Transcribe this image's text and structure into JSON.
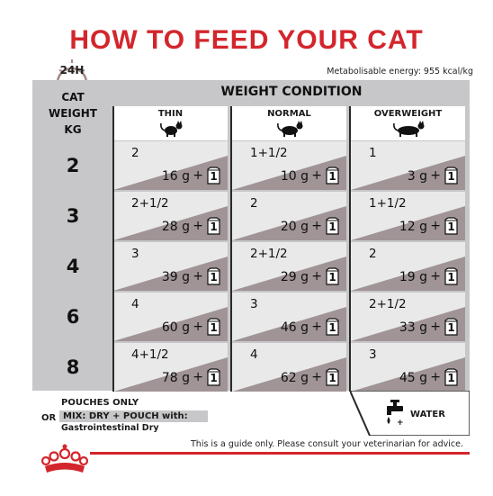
{
  "title": "HOW TO FEED YOUR CAT",
  "clock_label": "24H",
  "energy_text": "Metabolisable energy: 955 kcal/kg",
  "cat_weight_label": [
    "CAT",
    "WEIGHT",
    "KG"
  ],
  "weight_condition_label": "WEIGHT CONDITION",
  "columns": [
    "THIN",
    "NORMAL",
    "OVERWEIGHT"
  ],
  "pouch_icon_value": "1",
  "rows": [
    {
      "weight": "2",
      "cells": [
        {
          "pouches": "2",
          "dry": "16 g"
        },
        {
          "pouches": "1+1/2",
          "dry": "10 g"
        },
        {
          "pouches": "1",
          "dry": "3 g"
        }
      ]
    },
    {
      "weight": "3",
      "cells": [
        {
          "pouches": "2+1/2",
          "dry": "28 g"
        },
        {
          "pouches": "2",
          "dry": "20 g"
        },
        {
          "pouches": "1+1/2",
          "dry": "12 g"
        }
      ]
    },
    {
      "weight": "4",
      "cells": [
        {
          "pouches": "3",
          "dry": "39 g"
        },
        {
          "pouches": "2+1/2",
          "dry": "29 g"
        },
        {
          "pouches": "2",
          "dry": "19 g"
        }
      ]
    },
    {
      "weight": "6",
      "cells": [
        {
          "pouches": "4",
          "dry": "60 g"
        },
        {
          "pouches": "3",
          "dry": "46 g"
        },
        {
          "pouches": "2+1/2",
          "dry": "33 g"
        }
      ]
    },
    {
      "weight": "8",
      "cells": [
        {
          "pouches": "4+1/2",
          "dry": "78 g"
        },
        {
          "pouches": "4",
          "dry": "62 g"
        },
        {
          "pouches": "3",
          "dry": "45 g"
        }
      ]
    }
  ],
  "plus_sign": "+",
  "legend": {
    "pouches_only": "POUCHES ONLY",
    "or": "OR",
    "mix": "MIX: DRY + POUCH with:",
    "mix_sub": "Gastrointestinal Dry",
    "water": "WATER"
  },
  "disclaimer": "This is a guide only. Please consult your veterinarian for advice.",
  "colors": {
    "accent": "#d3262c",
    "panel": "#c7c7c9",
    "cell_light": "#e9e9ea",
    "cell_dark": "#a09496"
  }
}
